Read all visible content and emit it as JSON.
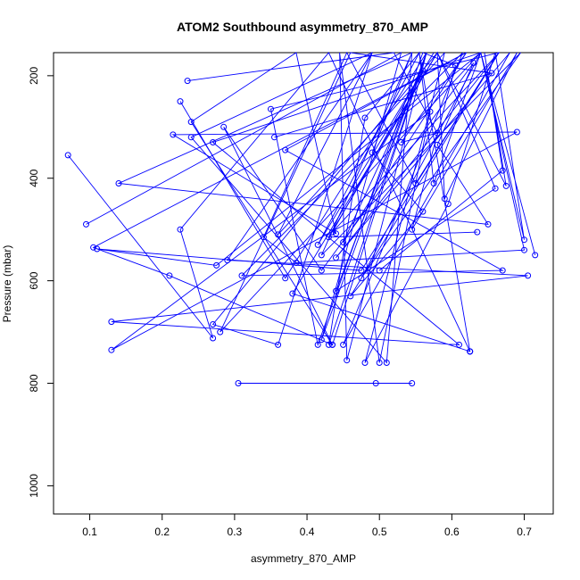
{
  "chart_data": {
    "type": "line",
    "title": "ATOM2 Southbound asymmetry_870_AMP",
    "xlabel": "asymmetry_870_AMP",
    "ylabel": "Pressure (mbar)",
    "xlim": [
      0.05,
      0.74
    ],
    "ylim": [
      1055,
      155
    ],
    "y_reversed": true,
    "x_ticks": [
      "0.1",
      "0.2",
      "0.3",
      "0.4",
      "0.5",
      "0.6",
      "0.7"
    ],
    "y_ticks": [
      "200",
      "400",
      "600",
      "800",
      "1000"
    ],
    "grid": false,
    "legend": "none",
    "series_color": "#0000ff",
    "marker": "open-circle",
    "series": [
      {
        "points": [
          [
            0.305,
            800
          ],
          [
            0.495,
            800
          ],
          [
            0.545,
            800
          ]
        ]
      },
      {
        "points": [
          [
            0.07,
            355
          ],
          [
            0.27,
            712
          ],
          [
            0.225,
            500
          ],
          [
            0.43,
            155
          ],
          [
            0.625,
            738
          ],
          [
            0.625,
            738
          ]
        ]
      },
      {
        "points": [
          [
            0.235,
            210
          ],
          [
            0.52,
            155
          ],
          [
            0.58,
            312
          ],
          [
            0.53,
            330
          ],
          [
            0.62,
            155
          ],
          [
            0.105,
            535
          ],
          [
            0.21,
            590
          ],
          [
            0.435,
            725
          ],
          [
            0.24,
            290
          ],
          [
            0.385,
            155
          ],
          [
            0.44,
            508
          ],
          [
            0.215,
            315
          ],
          [
            0.69,
            310
          ],
          [
            0.13,
            735
          ],
          [
            0.57,
            270
          ],
          [
            0.5,
            760
          ],
          [
            0.445,
            155
          ],
          [
            0.455,
            755
          ],
          [
            0.565,
            155
          ],
          [
            0.42,
            715
          ],
          [
            0.53,
            155
          ],
          [
            0.095,
            490
          ]
        ]
      },
      {
        "points": [
          [
            0.635,
            505
          ],
          [
            0.43,
            515
          ],
          [
            0.58,
            155
          ],
          [
            0.27,
            685
          ],
          [
            0.36,
            725
          ],
          [
            0.49,
            155
          ],
          [
            0.24,
            320
          ],
          [
            0.51,
            760
          ],
          [
            0.545,
            155
          ],
          [
            0.14,
            410
          ],
          [
            0.65,
            490
          ],
          [
            0.58,
            335
          ],
          [
            0.63,
            175
          ],
          [
            0.42,
            580
          ],
          [
            0.285,
            300
          ],
          [
            0.435,
            725
          ],
          [
            0.565,
            155
          ],
          [
            0.44,
            620
          ],
          [
            0.66,
            420
          ],
          [
            0.58,
            155
          ],
          [
            0.675,
            415
          ],
          [
            0.645,
            155
          ],
          [
            0.67,
            385
          ],
          [
            0.5,
            580
          ]
        ]
      },
      {
        "points": [
          [
            0.225,
            250
          ],
          [
            0.37,
            595
          ],
          [
            0.565,
            155
          ],
          [
            0.43,
            725
          ],
          [
            0.48,
            282
          ],
          [
            0.555,
            155
          ],
          [
            0.625,
            738
          ],
          [
            0.38,
            625
          ],
          [
            0.58,
            155
          ],
          [
            0.59,
            440
          ],
          [
            0.69,
            155
          ],
          [
            0.545,
            500
          ],
          [
            0.605,
            180
          ],
          [
            0.56,
            155
          ],
          [
            0.415,
            725
          ],
          [
            0.35,
            265
          ],
          [
            0.665,
            155
          ],
          [
            0.55,
            410
          ],
          [
            0.455,
            155
          ],
          [
            0.34,
            515
          ],
          [
            0.385,
            565
          ],
          [
            0.7,
            540
          ],
          [
            0.64,
            155
          ],
          [
            0.7,
            520
          ],
          [
            0.66,
            155
          ],
          [
            0.595,
            450
          ],
          [
            0.48,
            760
          ],
          [
            0.59,
            155
          ],
          [
            0.36,
            510
          ],
          [
            0.49,
            155
          ],
          [
            0.29,
            560
          ],
          [
            0.705,
            590
          ],
          [
            0.13,
            680
          ],
          [
            0.61,
            725
          ],
          [
            0.27,
            330
          ],
          [
            0.64,
            155
          ],
          [
            0.715,
            550
          ]
        ]
      },
      {
        "points": [
          [
            0.355,
            320
          ],
          [
            0.655,
            195
          ],
          [
            0.46,
            155
          ],
          [
            0.28,
            700
          ],
          [
            0.64,
            155
          ],
          [
            0.275,
            570
          ],
          [
            0.11,
            538
          ],
          [
            0.475,
            580
          ],
          [
            0.665,
            155
          ],
          [
            0.435,
            505
          ],
          [
            0.56,
            190
          ],
          [
            0.45,
            525
          ],
          [
            0.62,
            155
          ],
          [
            0.37,
            345
          ],
          [
            0.67,
            580
          ],
          [
            0.31,
            590
          ],
          [
            0.615,
            155
          ],
          [
            0.45,
            725
          ],
          [
            0.68,
            155
          ],
          [
            0.44,
            555
          ],
          [
            0.665,
            155
          ],
          [
            0.46,
            630
          ],
          [
            0.56,
            465
          ],
          [
            0.49,
            350
          ],
          [
            0.545,
            155
          ],
          [
            0.42,
            550
          ],
          [
            0.695,
            155
          ],
          [
            0.475,
            595
          ],
          [
            0.64,
            155
          ],
          [
            0.575,
            410
          ],
          [
            0.555,
            155
          ],
          [
            0.415,
            530
          ],
          [
            0.575,
            155
          ]
        ]
      }
    ]
  }
}
